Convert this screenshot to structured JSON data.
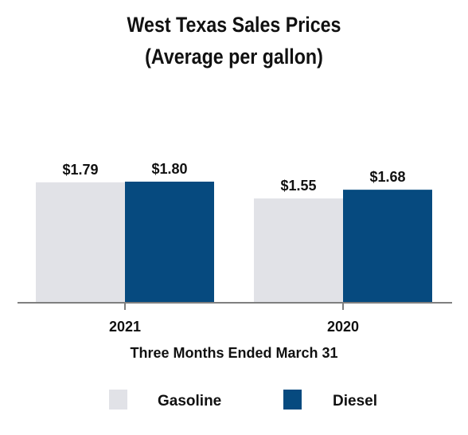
{
  "chart_data": {
    "type": "bar",
    "title": "West Texas Sales Prices",
    "subtitle": "(Average per gallon)",
    "xlabel": "Three Months Ended March 31",
    "ylabel": "",
    "categories": [
      "2021",
      "2020"
    ],
    "series": [
      {
        "name": "Gasoline",
        "values": [
          1.79,
          1.55
        ],
        "labels": [
          "$1.79",
          "$1.55"
        ],
        "color": "#e1e2e7"
      },
      {
        "name": "Diesel",
        "values": [
          1.8,
          1.68
        ],
        "labels": [
          "$1.80",
          "$1.68"
        ],
        "color": "#064a7f"
      }
    ],
    "ylim": [
      0,
      1.8
    ],
    "grid": false,
    "legend": "bottom",
    "axis_color": "#7f7f7f"
  }
}
